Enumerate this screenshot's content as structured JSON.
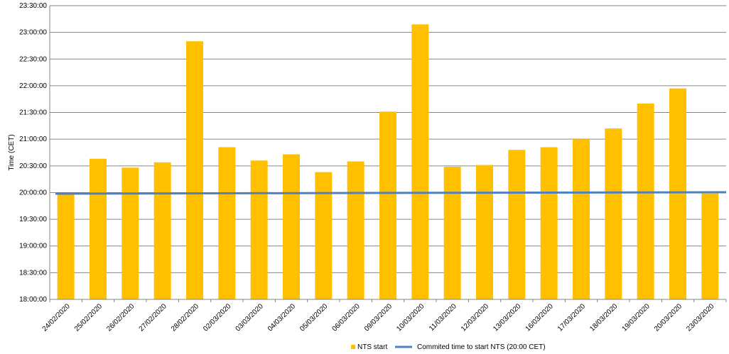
{
  "chart_data": {
    "type": "bar",
    "ylabel": "Time (CET)",
    "xlabel": "",
    "title": "",
    "ylim": [
      "18:00:00",
      "23:30:00"
    ],
    "y_ticks": [
      "18:00:00",
      "18:30:00",
      "19:00:00",
      "19:30:00",
      "20:00:00",
      "20:30:00",
      "21:00:00",
      "21:30:00",
      "22:00:00",
      "22:30:00",
      "23:00:00",
      "23:30:00"
    ],
    "grid": "horizontal",
    "legend_position": "bottom",
    "categories": [
      "24/02/2020",
      "25/02/2020",
      "26/02/2020",
      "27/02/2020",
      "28/02/2020",
      "02/03/2020",
      "03/03/2020",
      "04/03/2020",
      "05/03/2020",
      "06/03/2020",
      "09/03/2020",
      "10/03/2020",
      "11/03/2020",
      "12/03/2020",
      "13/03/2020",
      "16/03/2020",
      "17/03/2020",
      "18/03/2020",
      "19/03/2020",
      "20/03/2020",
      "23/03/2020"
    ],
    "series": [
      {
        "name": "NTS start",
        "kind": "bar",
        "color": "#FFC000",
        "values": [
          "19:59:00",
          "20:38:00",
          "20:28:00",
          "20:34:00",
          "22:50:00",
          "20:51:00",
          "20:36:00",
          "20:43:00",
          "20:23:00",
          "20:35:00",
          "21:31:00",
          "23:09:00",
          "20:29:00",
          "20:31:00",
          "20:48:00",
          "20:51:00",
          "21:00:00",
          "21:12:00",
          "21:40:00",
          "21:57:00",
          "19:59:00"
        ]
      },
      {
        "name": "Commited  time to start NTS (20:00 CET)",
        "kind": "line",
        "color": "#4F81BD",
        "values": [
          "20:00:00",
          "20:00:00",
          "20:00:00",
          "20:00:00",
          "20:00:00",
          "20:00:00",
          "20:00:00",
          "20:00:00",
          "20:00:00",
          "20:00:00",
          "20:00:00",
          "20:00:00",
          "20:00:00",
          "20:00:00",
          "20:00:00",
          "20:00:00",
          "20:00:00",
          "20:00:00",
          "20:00:00",
          "20:00:00",
          "20:00:00"
        ]
      }
    ]
  }
}
